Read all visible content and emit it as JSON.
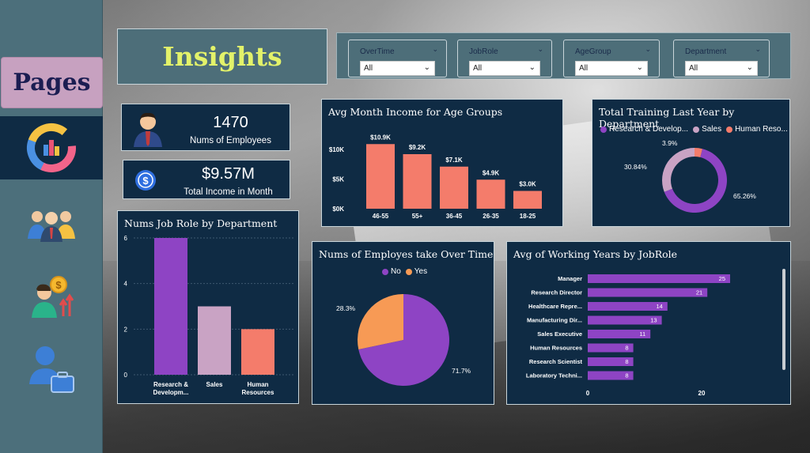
{
  "sidebar": {
    "pages_label": "Pages",
    "items": [
      {
        "icon": "donut-chart-icon",
        "active": true
      },
      {
        "icon": "people-group-icon",
        "active": false
      },
      {
        "icon": "person-money-icon",
        "active": false
      },
      {
        "icon": "person-briefcase-icon",
        "active": false
      }
    ]
  },
  "header": {
    "title": "Insights"
  },
  "filters": [
    {
      "label": "OverTime",
      "value": "All"
    },
    {
      "label": "JobRole",
      "value": "All"
    },
    {
      "label": "AgeGroup",
      "value": "All"
    },
    {
      "label": "Department",
      "value": "All"
    }
  ],
  "kpis": {
    "employees": {
      "value": "1470",
      "label": "Nums of Employees"
    },
    "income": {
      "value": "$9.57M",
      "label": "Total Income in Month"
    }
  },
  "colors": {
    "card_bg": "#0f2b44",
    "purple": "#8e44c4",
    "salmon": "#f47c6b",
    "lilac": "#c9a3c4",
    "orange": "#f79a55",
    "title_yellow": "#e3f26a"
  },
  "chart_data": [
    {
      "id": "age_income",
      "type": "bar",
      "title": "Avg Month Income for Age Groups",
      "categories": [
        "46-55",
        "55+",
        "36-45",
        "26-35",
        "18-25"
      ],
      "values": [
        10.9,
        9.2,
        7.1,
        4.9,
        3.0
      ],
      "data_labels": [
        "$10.9K",
        "$9.2K",
        "$7.1K",
        "$4.9K",
        "$3.0K"
      ],
      "y_ticks": [
        "$0K",
        "$5K",
        "$10K"
      ],
      "ylim": [
        0,
        12
      ]
    },
    {
      "id": "training_dept",
      "type": "pie",
      "title": "Total Training Last Year by Department",
      "donut": true,
      "legend": [
        "Research & Develop...",
        "Sales",
        "Human Reso..."
      ],
      "values": [
        65.26,
        30.84,
        3.9
      ],
      "data_labels": [
        "65.26%",
        "30.84%",
        "3.9%"
      ]
    },
    {
      "id": "jobrole_dept",
      "type": "bar",
      "title": "Nums Job Role by Department",
      "categories": [
        "Research & Developm...",
        "Sales",
        "Human Resources"
      ],
      "values": [
        6,
        3,
        2
      ],
      "y_ticks": [
        "0",
        "2",
        "4",
        "6"
      ],
      "ylim": [
        0,
        6
      ]
    },
    {
      "id": "overtime",
      "type": "pie",
      "title": "Nums of Employes take Over Time",
      "legend": [
        "No",
        "Yes"
      ],
      "values": [
        71.7,
        28.3
      ],
      "data_labels": [
        "71.7%",
        "28.3%"
      ]
    },
    {
      "id": "working_years",
      "type": "bar",
      "orientation": "horizontal",
      "title": "Avg of Working Years by JobRole",
      "categories": [
        "Manager",
        "Research Director",
        "Healthcare Repre...",
        "Manufacturing Dir...",
        "Sales Executive",
        "Human Resources",
        "Research Scientist",
        "Laboratory Techni..."
      ],
      "values": [
        25,
        21,
        14,
        13,
        11,
        8,
        8,
        8
      ],
      "x_ticks": [
        "0",
        "20"
      ],
      "xlim": [
        0,
        30
      ]
    }
  ]
}
